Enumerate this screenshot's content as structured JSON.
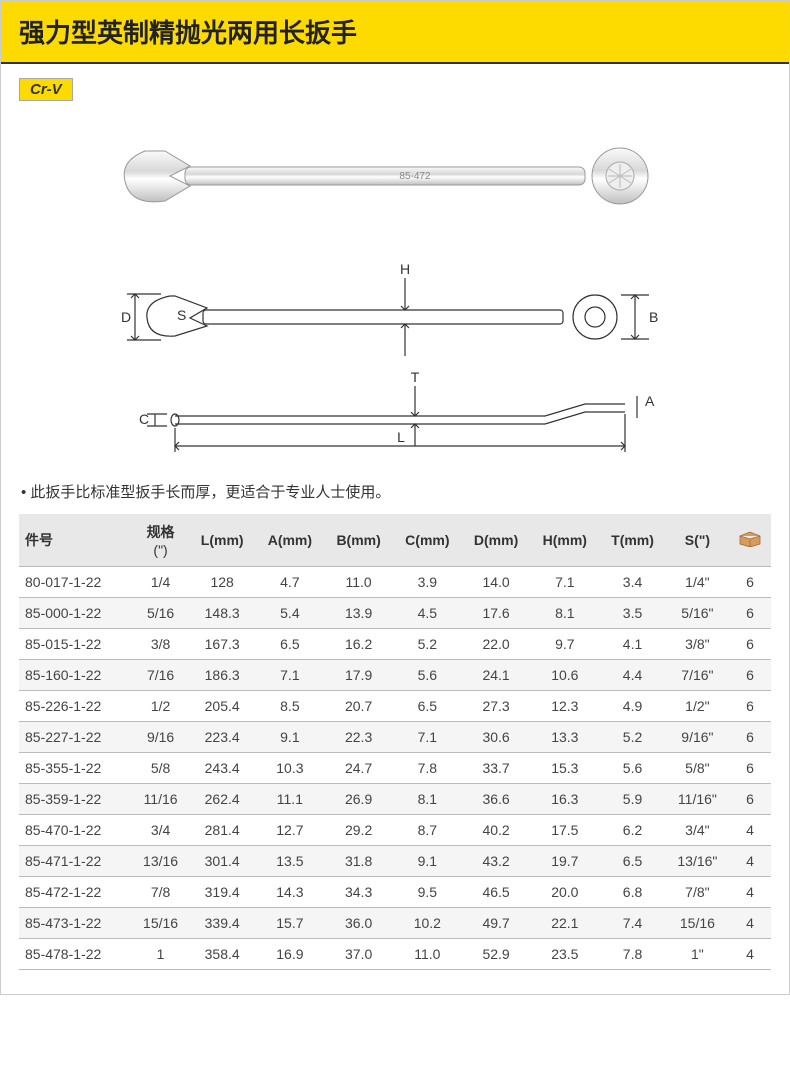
{
  "header": {
    "title": "强力型英制精抛光两用长扳手"
  },
  "badge": "Cr-V",
  "product_label": "85-472",
  "note": "• 此扳手比标准型扳手长而厚，更适合于专业人士使用。",
  "diagram_labels": {
    "H": "H",
    "B": "B",
    "D": "D",
    "S": "S",
    "T": "T",
    "C": "C",
    "A": "A",
    "L": "L"
  },
  "table": {
    "columns": [
      "件号",
      "规格 (\")",
      "L(mm)",
      "A(mm)",
      "B(mm)",
      "C(mm)",
      "D(mm)",
      "H(mm)",
      "T(mm)",
      "S(\")",
      ""
    ],
    "col_align": [
      "left",
      "center",
      "center",
      "center",
      "center",
      "center",
      "center",
      "center",
      "center",
      "center",
      "center"
    ],
    "header_bg": "#e8e8e8",
    "row_alt_bg": "#f5f5f5",
    "border_color": "#bbbbbb",
    "box_icon_color": "#d89b5c",
    "rows": [
      [
        "80-017-1-22",
        "1/4",
        "128",
        "4.7",
        "11.0",
        "3.9",
        "14.0",
        "7.1",
        "3.4",
        "1/4\"",
        "6"
      ],
      [
        "85-000-1-22",
        "5/16",
        "148.3",
        "5.4",
        "13.9",
        "4.5",
        "17.6",
        "8.1",
        "3.5",
        "5/16\"",
        "6"
      ],
      [
        "85-015-1-22",
        "3/8",
        "167.3",
        "6.5",
        "16.2",
        "5.2",
        "22.0",
        "9.7",
        "4.1",
        "3/8\"",
        "6"
      ],
      [
        "85-160-1-22",
        "7/16",
        "186.3",
        "7.1",
        "17.9",
        "5.6",
        "24.1",
        "10.6",
        "4.4",
        "7/16\"",
        "6"
      ],
      [
        "85-226-1-22",
        "1/2",
        "205.4",
        "8.5",
        "20.7",
        "6.5",
        "27.3",
        "12.3",
        "4.9",
        "1/2\"",
        "6"
      ],
      [
        "85-227-1-22",
        "9/16",
        "223.4",
        "9.1",
        "22.3",
        "7.1",
        "30.6",
        "13.3",
        "5.2",
        "9/16\"",
        "6"
      ],
      [
        "85-355-1-22",
        "5/8",
        "243.4",
        "10.3",
        "24.7",
        "7.8",
        "33.7",
        "15.3",
        "5.6",
        "5/8\"",
        "6"
      ],
      [
        "85-359-1-22",
        "11/16",
        "262.4",
        "11.1",
        "26.9",
        "8.1",
        "36.6",
        "16.3",
        "5.9",
        "11/16\"",
        "6"
      ],
      [
        "85-470-1-22",
        "3/4",
        "281.4",
        "12.7",
        "29.2",
        "8.7",
        "40.2",
        "17.5",
        "6.2",
        "3/4\"",
        "4"
      ],
      [
        "85-471-1-22",
        "13/16",
        "301.4",
        "13.5",
        "31.8",
        "9.1",
        "43.2",
        "19.7",
        "6.5",
        "13/16\"",
        "4"
      ],
      [
        "85-472-1-22",
        "7/8",
        "319.4",
        "14.3",
        "34.3",
        "9.5",
        "46.5",
        "20.0",
        "6.8",
        "7/8\"",
        "4"
      ],
      [
        "85-473-1-22",
        "15/16",
        "339.4",
        "15.7",
        "36.0",
        "10.2",
        "49.7",
        "22.1",
        "7.4",
        "15/16",
        "4"
      ],
      [
        "85-478-1-22",
        "1",
        "358.4",
        "16.9",
        "37.0",
        "11.0",
        "52.9",
        "23.5",
        "7.8",
        "1\"",
        "4"
      ]
    ]
  },
  "colors": {
    "brand_yellow": "#fddb00",
    "text": "#333333"
  }
}
